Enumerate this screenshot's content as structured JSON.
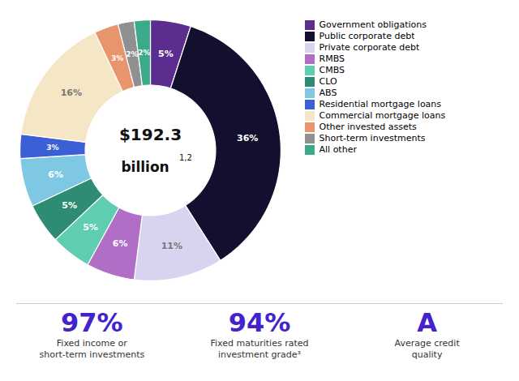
{
  "chart_data": {
    "type": "donut",
    "categories": [
      "Government obligations",
      "Public corporate debt",
      "Private corporate debt",
      "RMBS",
      "CMBS",
      "CLO",
      "ABS",
      "Residential mortgage loans",
      "Commercial mortgage loans",
      "Other invested assets",
      "Short-term investments",
      "All other"
    ],
    "values": [
      5,
      36,
      11,
      6,
      5,
      5,
      6,
      3,
      16,
      3,
      2,
      2
    ],
    "value_labels": [
      "5%",
      "36%",
      "11%",
      "6%",
      "5%",
      "5%",
      "6%",
      "3%",
      "16%",
      "3%",
      "2%",
      "2%"
    ],
    "colors": [
      "#5b2d8e",
      "#130f2e",
      "#d8d4ef",
      "#b06ec7",
      "#5ecdb0",
      "#2e8b74",
      "#7ec8e3",
      "#3b5fd4",
      "#f5e6c5",
      "#e8956d",
      "#909090",
      "#3aaa8a"
    ],
    "data_labels": true,
    "legend": "right",
    "annotations": {
      "center": [
        "$192.3",
        "billion",
        "1,2"
      ],
      "stats": [
        {
          "text": "97%",
          "lines": [
            "Fixed income or",
            "short-term investments"
          ],
          "color": "#4422cc"
        },
        {
          "text": "94%",
          "lines": [
            "Fixed maturities rated",
            "investment grade³"
          ],
          "color": "#4422cc"
        },
        {
          "text": "A",
          "lines": [
            "Average credit",
            "quality"
          ],
          "color": "#4422cc"
        }
      ]
    }
  }
}
